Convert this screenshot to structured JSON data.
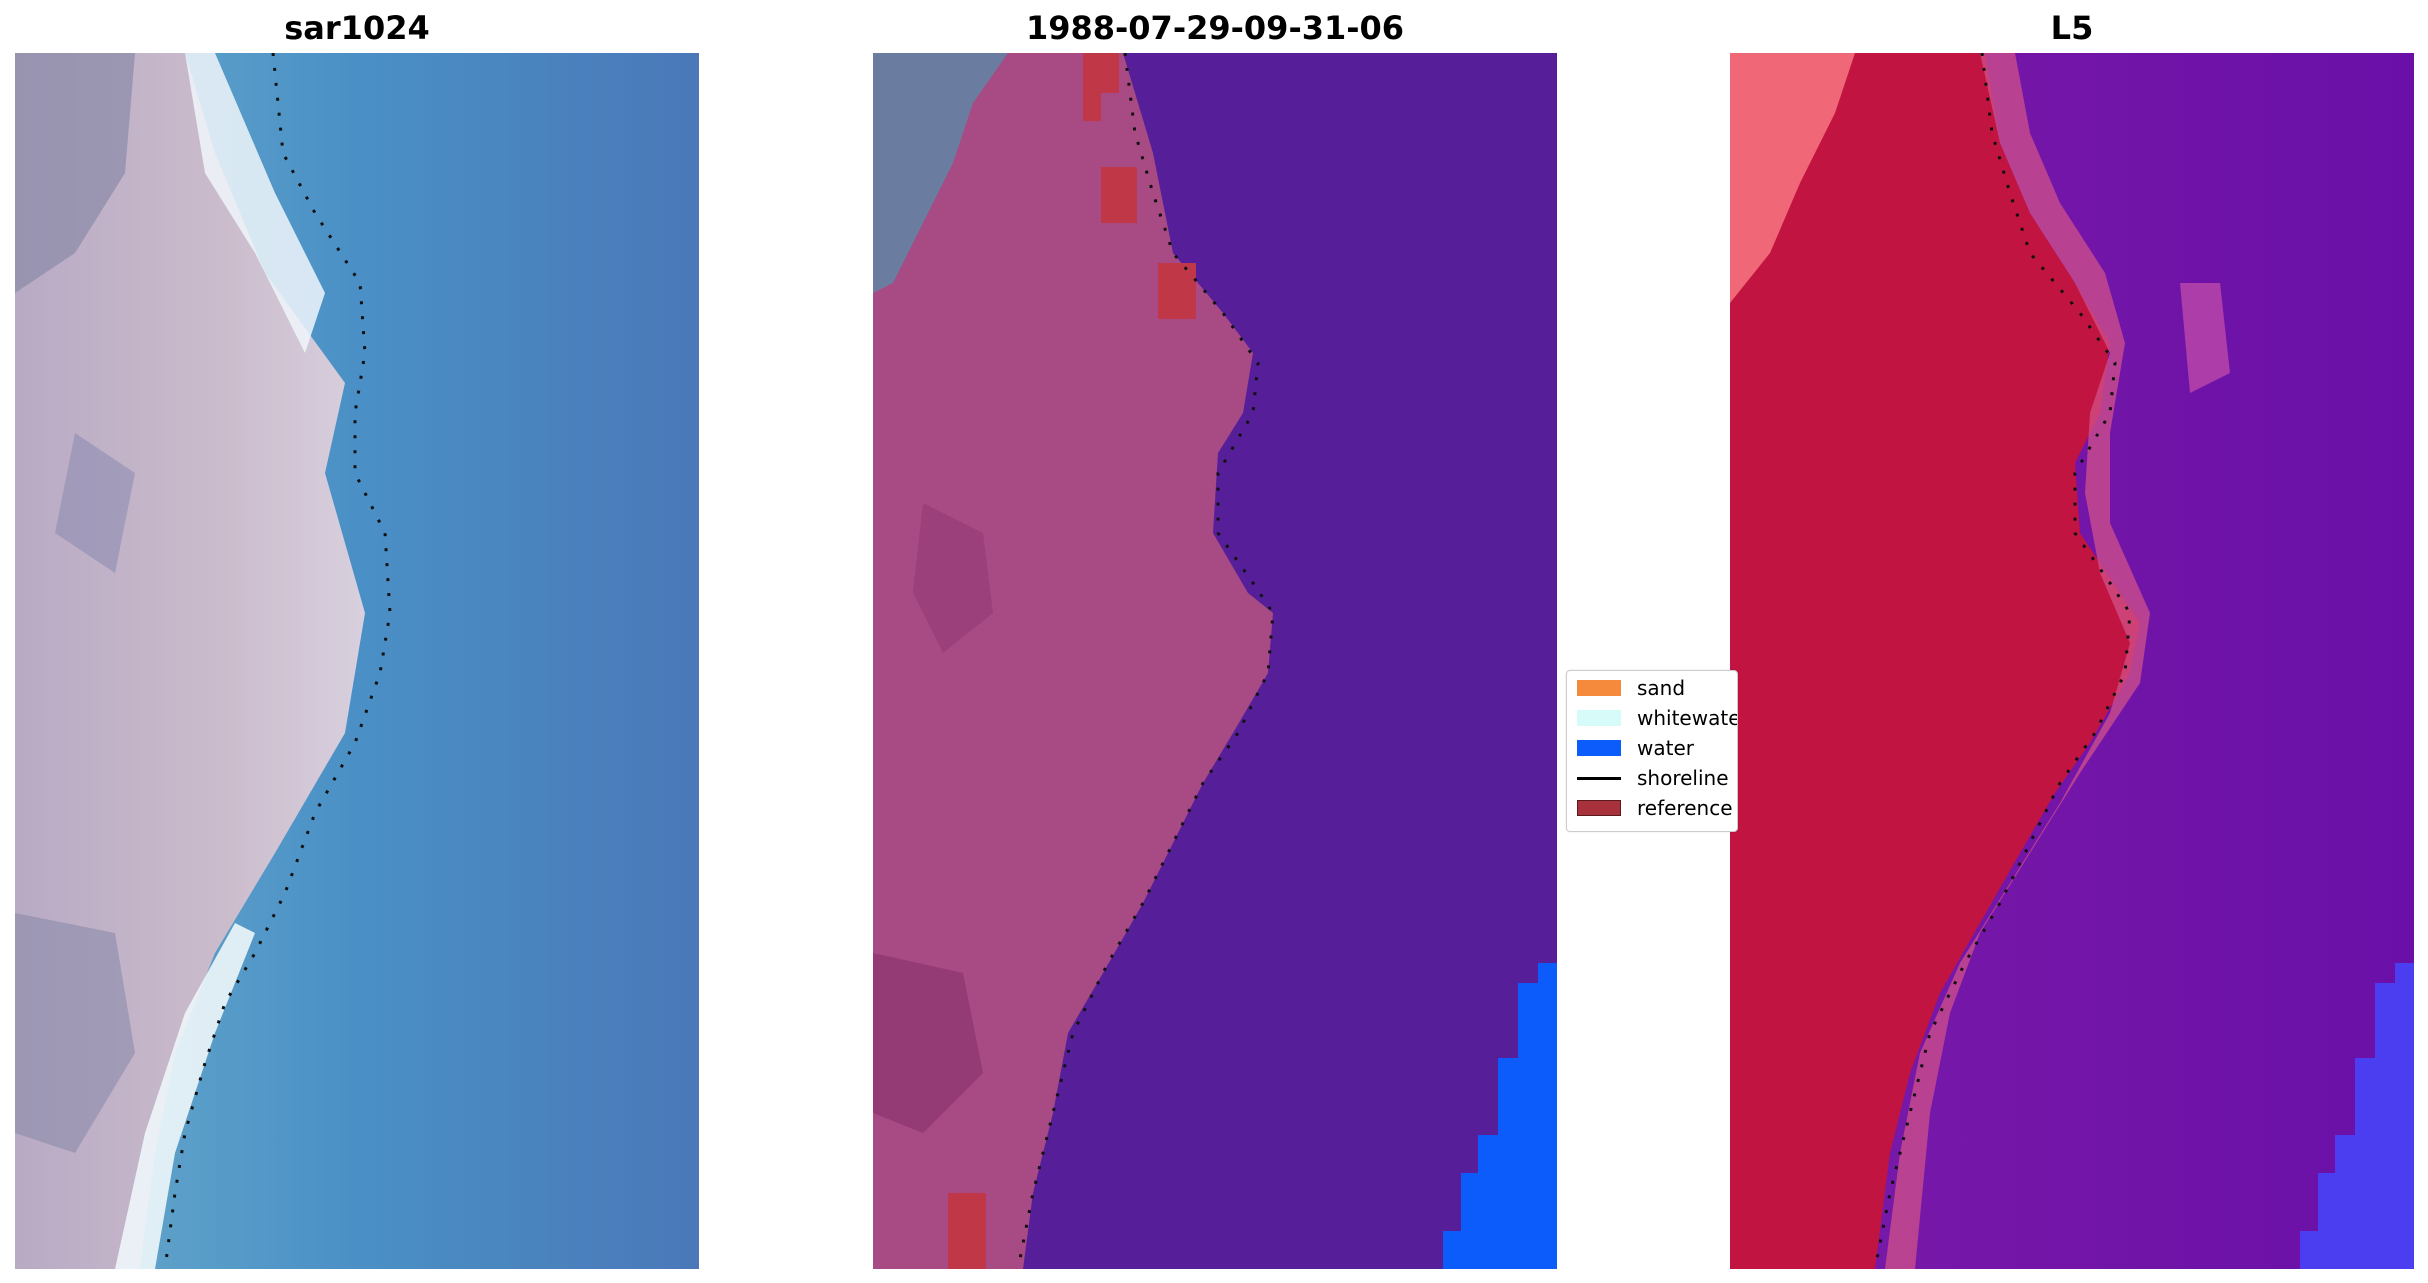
{
  "panels": [
    {
      "title": "sar1024"
    },
    {
      "title": "1988-07-29-09-31-06"
    },
    {
      "title": "L5"
    }
  ],
  "legend": {
    "items": [
      {
        "label": "sand",
        "color": "#f58a3c",
        "kind": "patch"
      },
      {
        "label": "whitewater",
        "color": "#d6fbf8",
        "kind": "patch"
      },
      {
        "label": "water",
        "color": "#0c5cfb",
        "kind": "patch"
      },
      {
        "label": "shoreline",
        "color": "#000000",
        "kind": "line"
      },
      {
        "label": "reference",
        "color": "#a8323c",
        "kind": "patch"
      }
    ]
  },
  "colors": {
    "sar_water": "#4a88c4",
    "sar_land": "#c8b8cc",
    "classified_water": "#561f99",
    "classified_land": "#a84a84",
    "l5_water": "#6a10a8",
    "l5_land": "#c4103c"
  }
}
